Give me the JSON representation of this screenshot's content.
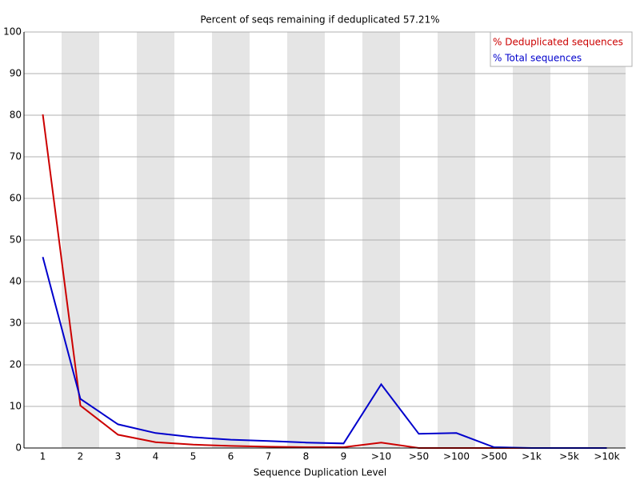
{
  "chart_data": {
    "type": "line",
    "title": "Percent of seqs remaining if deduplicated 57.21%",
    "x_label": "Sequence Duplication Level",
    "categories": [
      "1",
      "2",
      "3",
      "4",
      "5",
      "6",
      "7",
      "8",
      "9",
      ">10",
      ">50",
      ">100",
      ">500",
      ">1k",
      ">5k",
      ">10k"
    ],
    "series": [
      {
        "name": "% Deduplicated sequences",
        "color": "#cc0000",
        "values": [
          80.2,
          10.2,
          3.2,
          1.4,
          0.8,
          0.5,
          0.3,
          0.2,
          0.2,
          1.3,
          0,
          0,
          0,
          0,
          0,
          0
        ]
      },
      {
        "name": "% Total sequences",
        "color": "#0000cc",
        "values": [
          45.9,
          11.8,
          5.7,
          3.6,
          2.6,
          2.0,
          1.7,
          1.3,
          1.1,
          15.3,
          3.4,
          3.6,
          0.2,
          0,
          0,
          0
        ]
      }
    ],
    "ylim": [
      0,
      100
    ],
    "yticks": [
      0,
      10,
      20,
      30,
      40,
      50,
      60,
      70,
      80,
      90,
      100
    ],
    "grid": true,
    "legend": "top-right"
  }
}
